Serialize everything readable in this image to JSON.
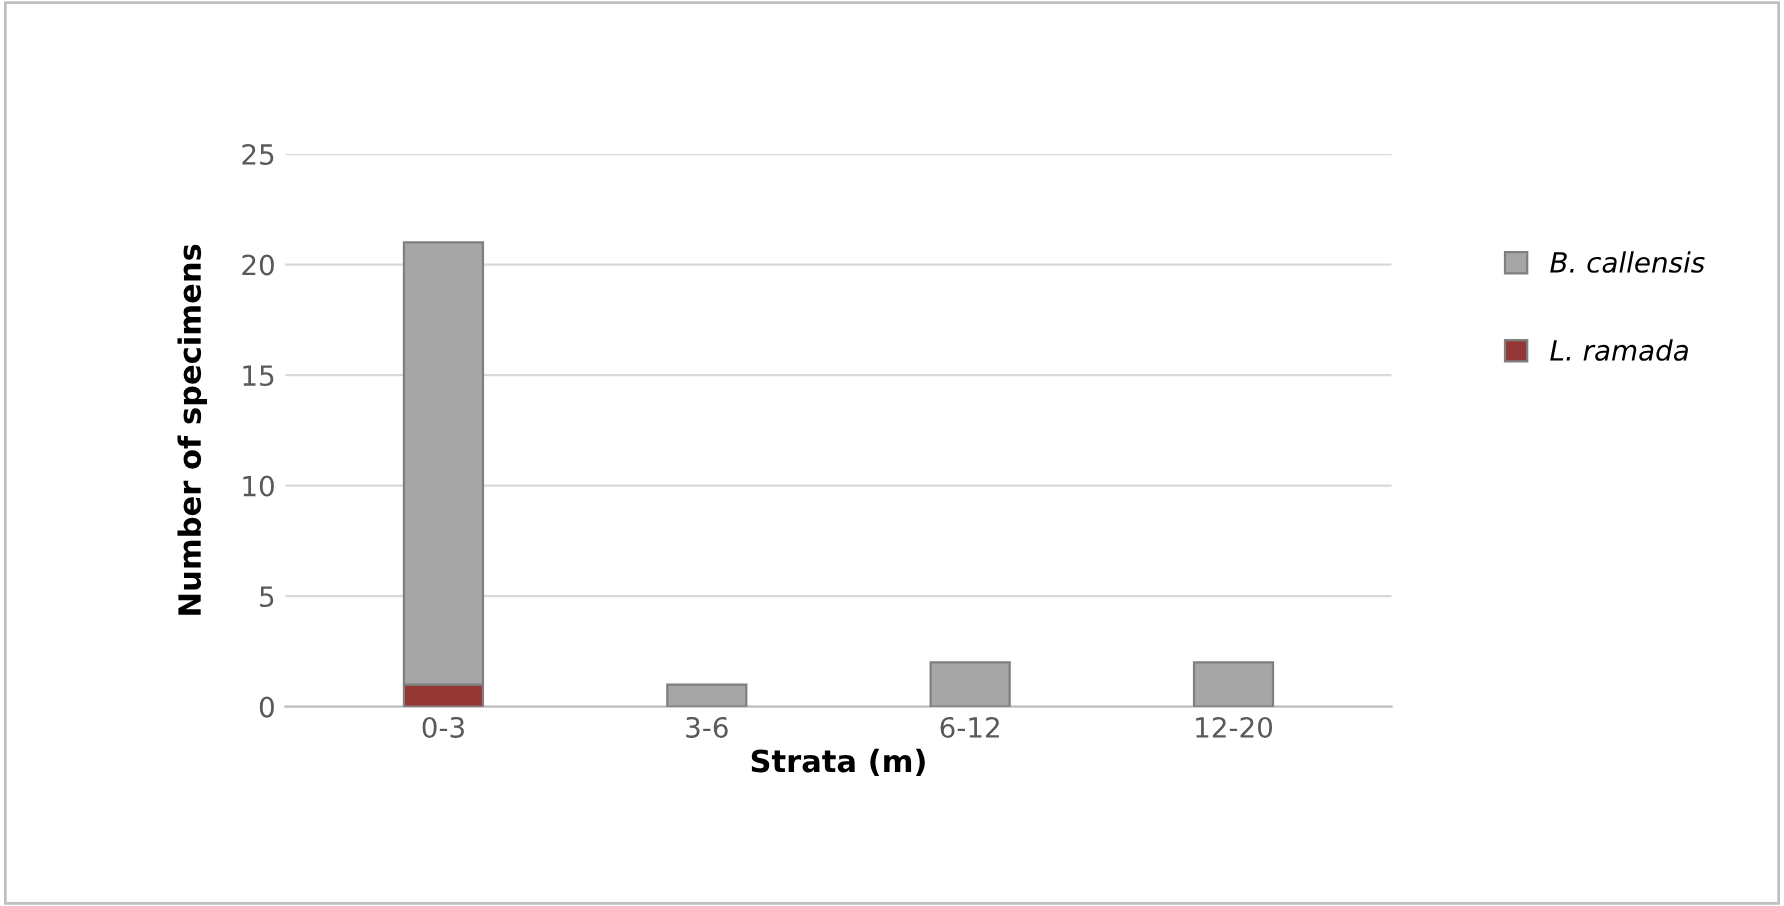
{
  "chart_data": {
    "type": "bar",
    "stacked": true,
    "xlabel": "Strata (m)",
    "ylabel": "Number of specimens",
    "categories": [
      "0-3",
      "3-6",
      "6-12",
      "12-20"
    ],
    "series": [
      {
        "name": "L. ramada",
        "color": "#953735",
        "values": [
          1,
          0,
          0,
          0
        ]
      },
      {
        "name": "B. callensis",
        "color": "#a6a6a6",
        "values": [
          20,
          1,
          2,
          2
        ]
      }
    ],
    "ylim": [
      0,
      25
    ],
    "yticks": [
      0,
      5,
      10,
      15,
      20,
      25
    ],
    "grid": "y",
    "legend": "right"
  }
}
